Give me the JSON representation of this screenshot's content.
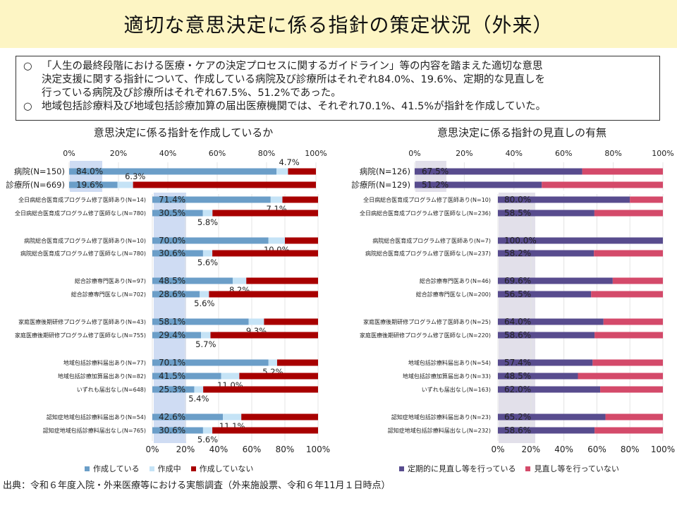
{
  "title": "適切な意思決定に係る指針の策定状況（外来）",
  "summary": {
    "bullet": "○",
    "items": [
      [
        "「人生の最終段階における医療・ケアの決定プロセスに関するガイドライン」等の内容を踏まえた適切な意思",
        "決定支援に関する指針について、作成している病院及び診療所はそれぞれ84.0%、19.6%、定期的な見直しを",
        "行っている病院及び診療所はそれぞれ67.5%、51.2%であった。"
      ],
      [
        "地域包括診療料及び地域包括診療加算の届出医療機関では、それぞれ70.1%、41.5%が指針を作成していた。"
      ]
    ]
  },
  "source": "出典：令和６年度入院・外来医療等における実態調査（外来施設票、令和６年11月１日時点）",
  "colors": {
    "making": "#6b9ec8",
    "in_progress": "#c5e3f6",
    "not_making": "#a80000",
    "review_yes": "#584c8e",
    "review_no": "#d44a6a",
    "highlight": "#cfdcf3",
    "highlight_right": "#e2e0ea"
  },
  "chart_data": [
    {
      "type": "bar",
      "stacked": true,
      "orientation": "horizontal",
      "title": "意思決定に係る指針を作成しているか",
      "x_ticks": [
        "0%",
        "20%",
        "40%",
        "60%",
        "80%",
        "100%"
      ],
      "xlim": [
        0,
        100
      ],
      "legend": [
        "作成している",
        "作成中",
        "作成していない"
      ],
      "legend_position": "bottom",
      "top_group": {
        "categories": [
          "病院(N=150)",
          "診療所(N=669)"
        ],
        "series": [
          {
            "name": "作成している",
            "values": [
              84.0,
              19.6
            ]
          },
          {
            "name": "作成中",
            "values": [
              4.7,
              6.3
            ]
          },
          {
            "name": "作成していない",
            "values": [
              11.3,
              74.1
            ]
          }
        ],
        "labels_main": [
          "84.0%",
          "19.6%"
        ],
        "labels_mid": [
          "4.7%",
          "6.3%"
        ]
      },
      "sub_groups": [
        {
          "categories": [
            "全日病総合医育成プログラム修了医師あり(N=14)",
            "全日病総合医育成プログラム修了医師なし(N=780)"
          ],
          "making": [
            71.4,
            30.5
          ],
          "in_progress": [
            7.1,
            5.8
          ],
          "labels_main": [
            "71.4%",
            "30.5%"
          ],
          "labels_mid": [
            "7.1%",
            "5.8%"
          ]
        },
        {
          "categories": [
            "病院総合医育成プログラム修了医師あり(N=10)",
            "病院総合医育成プログラム修了医師なし(N=780)"
          ],
          "making": [
            70.0,
            30.6
          ],
          "in_progress": [
            10.0,
            5.6
          ],
          "labels_main": [
            "70.0%",
            "30.6%"
          ],
          "labels_mid": [
            "10.0%",
            "5.6%"
          ]
        },
        {
          "categories": [
            "総合診療専門医あり(N=97)",
            "総合診療専門医なし(N=702)"
          ],
          "making": [
            48.5,
            28.6
          ],
          "in_progress": [
            8.2,
            5.6
          ],
          "labels_main": [
            "48.5%",
            "28.6%"
          ],
          "labels_mid": [
            "8.2%",
            "5.6%"
          ]
        },
        {
          "categories": [
            "家庭医療後期研修プログラム修了医師あり(N=43)",
            "家庭医療後期研修プログラム修了医師なし(N=755)"
          ],
          "making": [
            58.1,
            29.4
          ],
          "in_progress": [
            9.3,
            5.7
          ],
          "labels_main": [
            "58.1%",
            "29.4%"
          ],
          "labels_mid": [
            "9.3%",
            "5.7%"
          ]
        },
        {
          "categories": [
            "地域包括診療料届出あり(N=77)",
            "地域包括診療加算届出あり(N=82)",
            "いずれも届出なし(N=648)"
          ],
          "making": [
            70.1,
            41.5,
            25.3
          ],
          "in_progress": [
            5.2,
            11.0,
            5.4
          ],
          "labels_main": [
            "70.1%",
            "41.5%",
            "25.3%"
          ],
          "labels_mid": [
            "5.2%",
            "11.0%",
            "5.4%"
          ]
        },
        {
          "categories": [
            "認知症地域包括診療料届出あり(N=54)",
            "認知症地域包括診療料届出なし(N=765)"
          ],
          "making": [
            42.6,
            30.6
          ],
          "in_progress": [
            11.1,
            5.6
          ],
          "labels_main": [
            "42.6%",
            "30.6%"
          ],
          "labels_mid": [
            "11.1%",
            "5.6%"
          ]
        }
      ]
    },
    {
      "type": "bar",
      "stacked": true,
      "orientation": "horizontal",
      "title": "意思決定に係る指針の見直しの有無",
      "x_ticks": [
        "0%",
        "20%",
        "40%",
        "60%",
        "80%",
        "100%"
      ],
      "xlim": [
        0,
        100
      ],
      "legend": [
        "定期的に見直し等を行っている",
        "見直し等を行っていない"
      ],
      "legend_position": "bottom",
      "top_group": {
        "categories": [
          "病院(N=126)",
          "診療所(N=129)"
        ],
        "review": [
          67.5,
          51.2
        ],
        "labels_main": [
          "67.5%",
          "51.2%"
        ]
      },
      "sub_groups": [
        {
          "categories": [
            "全日病総合医育成プログラム修了医師あり(N=10)",
            "全日病総合医育成プログラム修了医師なし(N=236)"
          ],
          "review": [
            80.0,
            58.5
          ],
          "labels_main": [
            "80.0%",
            "58.5%"
          ]
        },
        {
          "categories": [
            "病院総合医育成プログラム修了医師あり(N=7)",
            "病院総合医育成プログラム修了医師なし(N=237)"
          ],
          "review": [
            100.0,
            58.2
          ],
          "labels_main": [
            "100.0%",
            "58.2%"
          ]
        },
        {
          "categories": [
            "総合診療専門医あり(N=46)",
            "総合診療専門医なし(N=200)"
          ],
          "review": [
            69.6,
            56.5
          ],
          "labels_main": [
            "69.6%",
            "56.5%"
          ]
        },
        {
          "categories": [
            "家庭医療後期研修プログラム修了医師あり(N=25)",
            "家庭医療後期研修プログラム修了医師なし(N=220)"
          ],
          "review": [
            64.0,
            58.6
          ],
          "labels_main": [
            "64.0%",
            "58.6%"
          ]
        },
        {
          "categories": [
            "地域包括診療料届出あり(N=54)",
            "地域包括診療加算届出あり(N=33)",
            "いずれも届出なし(N=163)"
          ],
          "review": [
            57.4,
            48.5,
            62.0
          ],
          "labels_main": [
            "57.4%",
            "48.5%",
            "62.0%"
          ]
        },
        {
          "categories": [
            "認知症地域包括診療料届出あり(N=23)",
            "認知症地域包括診療料届出なし(N=232)"
          ],
          "review": [
            65.2,
            58.6
          ],
          "labels_main": [
            "65.2%",
            "58.6%"
          ]
        }
      ]
    }
  ]
}
